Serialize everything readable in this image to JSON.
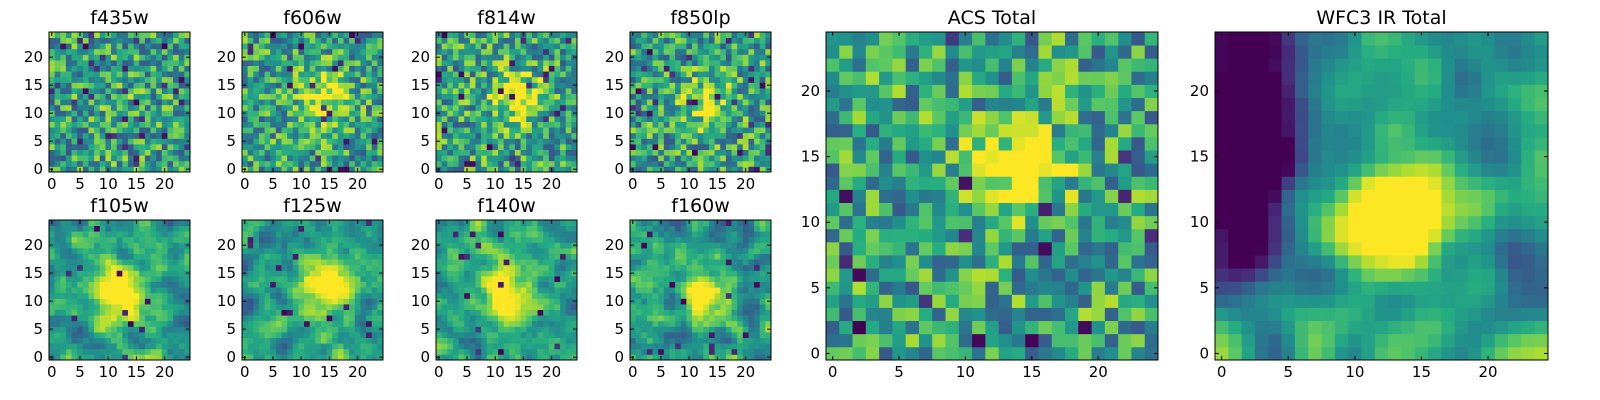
{
  "figure": {
    "colormap": "viridis"
  },
  "chart_data": [
    {
      "type": "heatmap",
      "title": "f435w",
      "grid_size": 25,
      "xlim": [
        -0.5,
        24.5
      ],
      "ylim": [
        -0.5,
        24.5
      ],
      "x_ticks": [
        0,
        5,
        10,
        15,
        20
      ],
      "y_ticks": [
        0,
        5,
        10,
        15,
        20
      ],
      "x_tick_labels": [
        "0",
        "5",
        "10",
        "15",
        "20"
      ],
      "y_tick_labels": [
        "0",
        "5",
        "10",
        "15",
        "20"
      ],
      "seed": 435,
      "smoothing": 0,
      "noise": 1.0,
      "blob": {
        "x": 12,
        "y": 12,
        "sigma": 3,
        "amp": 0.05
      },
      "dark_spots": 34
    },
    {
      "type": "heatmap",
      "title": "f606w",
      "grid_size": 25,
      "xlim": [
        -0.5,
        24.5
      ],
      "ylim": [
        -0.5,
        24.5
      ],
      "x_ticks": [
        0,
        5,
        10,
        15,
        20
      ],
      "y_ticks": [
        0,
        5,
        10,
        15,
        20
      ],
      "x_tick_labels": [
        "0",
        "5",
        "10",
        "15",
        "20"
      ],
      "y_tick_labels": [
        "0",
        "5",
        "10",
        "15",
        "20"
      ],
      "seed": 606,
      "smoothing": 0,
      "noise": 0.9,
      "blob": {
        "x": 14,
        "y": 13,
        "sigma": 3,
        "amp": 0.45
      },
      "dark_spots": 20
    },
    {
      "type": "heatmap",
      "title": "f814w",
      "grid_size": 25,
      "xlim": [
        -0.5,
        24.5
      ],
      "ylim": [
        -0.5,
        24.5
      ],
      "x_ticks": [
        0,
        5,
        10,
        15,
        20
      ],
      "y_ticks": [
        0,
        5,
        10,
        15,
        20
      ],
      "x_tick_labels": [
        "0",
        "5",
        "10",
        "15",
        "20"
      ],
      "y_tick_labels": [
        "0",
        "5",
        "10",
        "15",
        "20"
      ],
      "seed": 814,
      "smoothing": 0,
      "noise": 0.9,
      "blob": {
        "x": 14,
        "y": 13,
        "sigma": 3,
        "amp": 0.5
      },
      "dark_spots": 24
    },
    {
      "type": "heatmap",
      "title": "f850lp",
      "grid_size": 25,
      "xlim": [
        -0.5,
        24.5
      ],
      "ylim": [
        -0.5,
        24.5
      ],
      "x_ticks": [
        0,
        5,
        10,
        15,
        20
      ],
      "y_ticks": [
        0,
        5,
        10,
        15,
        20
      ],
      "x_tick_labels": [
        "0",
        "5",
        "10",
        "15",
        "20"
      ],
      "y_tick_labels": [
        "0",
        "5",
        "10",
        "15",
        "20"
      ],
      "seed": 850,
      "smoothing": 0,
      "noise": 1.0,
      "blob": {
        "x": 13,
        "y": 12,
        "sigma": 3,
        "amp": 0.35
      },
      "dark_spots": 30
    },
    {
      "type": "heatmap",
      "title": "f105w",
      "grid_size": 25,
      "xlim": [
        -0.5,
        24.5
      ],
      "ylim": [
        -0.5,
        24.5
      ],
      "x_ticks": [
        0,
        5,
        10,
        15,
        20
      ],
      "y_ticks": [
        0,
        5,
        10,
        15,
        20
      ],
      "x_tick_labels": [
        "0",
        "5",
        "10",
        "15",
        "20"
      ],
      "y_tick_labels": [
        "0",
        "5",
        "10",
        "15",
        "20"
      ],
      "seed": 105,
      "smoothing": 1,
      "noise": 0.8,
      "blob": {
        "x": 12,
        "y": 11,
        "sigma": 3.5,
        "amp": 0.6
      },
      "dark_spots": 10
    },
    {
      "type": "heatmap",
      "title": "f125w",
      "grid_size": 25,
      "xlim": [
        -0.5,
        24.5
      ],
      "ylim": [
        -0.5,
        24.5
      ],
      "x_ticks": [
        0,
        5,
        10,
        15,
        20
      ],
      "y_ticks": [
        0,
        5,
        10,
        15,
        20
      ],
      "x_tick_labels": [
        "0",
        "5",
        "10",
        "15",
        "20"
      ],
      "y_tick_labels": [
        "0",
        "5",
        "10",
        "15",
        "20"
      ],
      "seed": 125,
      "smoothing": 1,
      "noise": 0.85,
      "blob": {
        "x": 14,
        "y": 12,
        "sigma": 3.5,
        "amp": 0.55
      },
      "dark_spots": 14
    },
    {
      "type": "heatmap",
      "title": "f140w",
      "grid_size": 25,
      "xlim": [
        -0.5,
        24.5
      ],
      "ylim": [
        -0.5,
        24.5
      ],
      "x_ticks": [
        0,
        5,
        10,
        15,
        20
      ],
      "y_ticks": [
        0,
        5,
        10,
        15,
        20
      ],
      "x_tick_labels": [
        "0",
        "5",
        "10",
        "15",
        "20"
      ],
      "y_tick_labels": [
        "0",
        "5",
        "10",
        "15",
        "20"
      ],
      "seed": 140,
      "smoothing": 1,
      "noise": 0.85,
      "blob": {
        "x": 12,
        "y": 12,
        "sigma": 3.5,
        "amp": 0.6
      },
      "dark_spots": 16
    },
    {
      "type": "heatmap",
      "title": "f160w",
      "grid_size": 25,
      "xlim": [
        -0.5,
        24.5
      ],
      "ylim": [
        -0.5,
        24.5
      ],
      "x_ticks": [
        0,
        5,
        10,
        15,
        20
      ],
      "y_ticks": [
        0,
        5,
        10,
        15,
        20
      ],
      "x_tick_labels": [
        "0",
        "5",
        "10",
        "15",
        "20"
      ],
      "y_tick_labels": [
        "0",
        "5",
        "10",
        "15",
        "20"
      ],
      "seed": 160,
      "smoothing": 1,
      "noise": 0.85,
      "blob": {
        "x": 13,
        "y": 11,
        "sigma": 3,
        "amp": 0.65
      },
      "dark_spots": 18
    },
    {
      "type": "heatmap",
      "title": "ACS Total",
      "grid_size": 25,
      "xlim": [
        -0.5,
        24.5
      ],
      "ylim": [
        -0.5,
        24.5
      ],
      "x_ticks": [
        0,
        5,
        10,
        15,
        20
      ],
      "y_ticks": [
        0,
        5,
        10,
        15,
        20
      ],
      "x_tick_labels": [
        "0",
        "5",
        "10",
        "15",
        "20"
      ],
      "y_tick_labels": [
        "0",
        "5",
        "10",
        "15",
        "20"
      ],
      "seed": 1000,
      "smoothing": 0,
      "noise": 0.7,
      "blob": {
        "x": 14,
        "y": 14,
        "sigma": 2.5,
        "amp": 0.55
      },
      "dark_spots": 16
    },
    {
      "type": "heatmap",
      "title": "WFC3 IR Total",
      "grid_size": 25,
      "xlim": [
        -0.5,
        24.5
      ],
      "ylim": [
        -0.5,
        24.5
      ],
      "x_ticks": [
        0,
        5,
        10,
        15,
        20
      ],
      "y_ticks": [
        0,
        5,
        10,
        15,
        20
      ],
      "x_tick_labels": [
        "0",
        "5",
        "10",
        "15",
        "20"
      ],
      "y_tick_labels": [
        "0",
        "5",
        "10",
        "15",
        "20"
      ],
      "seed": 2000,
      "smoothing": 2,
      "noise": 0.7,
      "blob": {
        "x": 13,
        "y": 11,
        "sigma": 3,
        "amp": 0.8
      },
      "dark_spots": 0,
      "dark_region": {
        "x": 2,
        "y": 15,
        "sigma": 3.5,
        "amp": -1.2
      }
    }
  ]
}
